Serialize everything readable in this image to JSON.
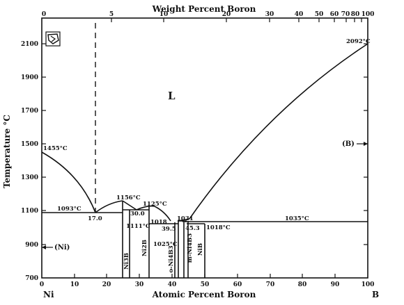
{
  "diagram": {
    "top_axis_title": "Weight Percent Boron",
    "bottom_axis_title": "Atomic Percent Boron",
    "y_axis_title": "Temperature °C",
    "left_element": "Ni",
    "right_element": "B",
    "liquid_label": "L",
    "ni_phase_label": "(Ni)",
    "b_phase_label": "(B)",
    "y_ticks": [
      "2100",
      "1900",
      "1700",
      "1500",
      "1300",
      "1100",
      "900",
      "700"
    ],
    "x_bottom_ticks": [
      "0",
      "10",
      "20",
      "30",
      "40",
      "50",
      "60",
      "70",
      "80",
      "90",
      "100"
    ],
    "x_top_ticks": [
      "0",
      "5",
      "10",
      "20",
      "30",
      "40",
      "50",
      "60",
      "70",
      "80",
      "90",
      "100"
    ],
    "annotations": {
      "ni_melt": "1455°C",
      "b_melt": "2092°C",
      "eutectic1_temp": "1093°C",
      "eutectic1_comp": "17.0",
      "ni3b_melt": "1156°C",
      "comp_30": "30.0",
      "ni2b_melt": "1125°C",
      "temp_1111": "1111°C",
      "temp_1018": "1018",
      "comp_39_5": "39.5",
      "temp_1025": "1025°C",
      "temp_1031": "1031",
      "comp_45_3": "45.3",
      "temp_1018c": "1018°C",
      "eutectic_right": "1035°C"
    },
    "phases": {
      "ni3b": "Ni3B",
      "ni2b": "Ni2B",
      "o_ni4b3": "o-Ni4B3",
      "m_ni4b3": "m-Ni4B3",
      "nib": "NiB"
    }
  }
}
